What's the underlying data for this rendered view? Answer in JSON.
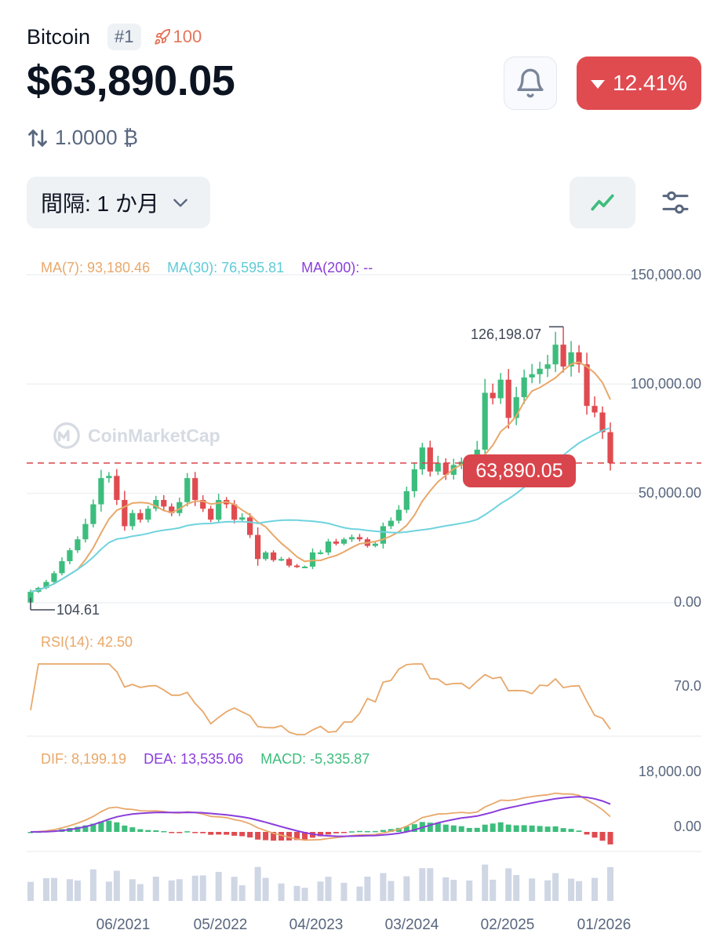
{
  "coin": {
    "name": "Bitcoin",
    "rank": "#1",
    "watchlist_count": "100"
  },
  "price": "$63,890.05",
  "change_pct": "12.41%",
  "conversion": "1.0000 ₿",
  "interval": {
    "label": "間隔: 1 か月"
  },
  "colors": {
    "up": "#3dbd7d",
    "down": "#e04b50",
    "ma7": "#e8a86a",
    "ma30": "#6fd3de",
    "ma200": "#8a3ddb",
    "volume": "#cfd6e4"
  },
  "chart_data": {
    "type": "candlestick",
    "indicators": {
      "ma7_label": "MA(7): 93,180.46",
      "ma30_label": "MA(30): 76,595.81",
      "ma200_label": "MA(200): --",
      "rsi_label": "RSI(14): 42.50",
      "dif_label": "DIF: 8,199.19",
      "dea_label": "DEA: 13,535.06",
      "macd_label": "MACD: -5,335.87"
    },
    "y_ticks": [
      "150,000.00",
      "100,000.00",
      "50,000.00",
      "0.00"
    ],
    "rsi_ticks": [
      "70.0"
    ],
    "macd_ticks": [
      "18,000.00",
      "0.00"
    ],
    "x_ticks": [
      "06/2021",
      "05/2022",
      "04/2023",
      "03/2024",
      "02/2025",
      "01/2026"
    ],
    "ylim": [
      0,
      150000
    ],
    "current_price_label": "63,890.05",
    "current_price": 63890.05,
    "high_label": "126,198.07",
    "high": 126198.07,
    "low_label": "104.61",
    "low": 104.61,
    "closes": [
      5000,
      6800,
      9500,
      13500,
      19000,
      24000,
      29000,
      36000,
      45000,
      57000,
      58000,
      47000,
      35000,
      41000,
      38000,
      43000,
      47000,
      44000,
      41000,
      46000,
      57000,
      47000,
      43000,
      38000,
      47000,
      45000,
      38000,
      39000,
      31000,
      20000,
      23000,
      19500,
      20000,
      17000,
      16500,
      16500,
      23000,
      23000,
      28000,
      27000,
      29000,
      30000,
      29000,
      26000,
      27000,
      35000,
      37500,
      42500,
      51000,
      61000,
      71000,
      60000,
      64000,
      58500,
      63000,
      64500,
      58500,
      70000,
      96000,
      93500,
      102000,
      84500,
      94000,
      103000,
      104500,
      107000,
      109000,
      118000,
      108000,
      114500,
      109000,
      90000,
      87000,
      78000,
      63890
    ]
  }
}
